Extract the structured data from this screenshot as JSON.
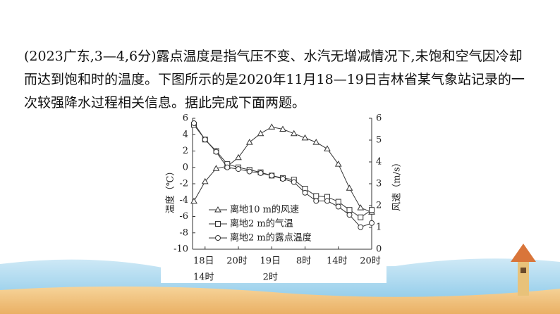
{
  "paragraph_lines": [
    "(2023广东,3—4,6分)露点温度是指气压不变、水汽无增减情况下,未饱和空气因冷却",
    "而达到饱和时的温度。下图所示的是2020年11月18—19日吉林省某气象站记录的一",
    "次较强降水过程相关信息。据此完成下面两题。"
  ],
  "chart_data": {
    "type": "line",
    "y_label": "温度（℃）",
    "y2_label": "风速（m/s）",
    "categories": [
      null,
      "18日",
      null,
      null,
      "20时",
      null,
      null,
      "19日",
      null,
      null,
      "8时",
      null,
      null,
      "14时",
      null,
      null,
      "20时"
    ],
    "category_sublabels": [
      null,
      "14时",
      null,
      null,
      null,
      null,
      null,
      "2时",
      null,
      null,
      null,
      null,
      null,
      null,
      null,
      null,
      null
    ],
    "ylim": [
      -10,
      6
    ],
    "yticks": [
      -10,
      -8,
      -6,
      -4,
      -2,
      0,
      2,
      4,
      6
    ],
    "y2lim": [
      0,
      6
    ],
    "y2ticks": [
      0,
      1,
      2,
      3,
      4,
      5,
      6
    ],
    "series": [
      {
        "name": "离地10 m的风速",
        "color": "#333333",
        "marker": "triangle",
        "axis": "y2",
        "values": [
          2.2,
          3.1,
          3.7,
          3.8,
          4.2,
          4.9,
          5.3,
          5.6,
          5.5,
          5.3,
          5.1,
          4.9,
          4.6,
          3.9,
          2.8,
          1.9,
          1.7
        ]
      },
      {
        "name": "离地2 m的气温",
        "color": "#333333",
        "marker": "square",
        "values": [
          5.2,
          3.4,
          2.0,
          0.4,
          0.0,
          -0.3,
          -0.6,
          -1.0,
          -1.3,
          -1.5,
          -2.6,
          -3.5,
          -3.6,
          -4.2,
          -5.2,
          -6.1,
          -5.2
        ]
      },
      {
        "name": "离地2 m的露点温度",
        "color": "#333333",
        "marker": "circle",
        "values": [
          5.4,
          3.4,
          1.9,
          0.0,
          -0.2,
          -0.5,
          -0.7,
          -1.0,
          -1.4,
          -1.8,
          -3.1,
          -4.1,
          -4.1,
          -4.8,
          -5.8,
          -7.3,
          -6.8
        ]
      }
    ]
  }
}
